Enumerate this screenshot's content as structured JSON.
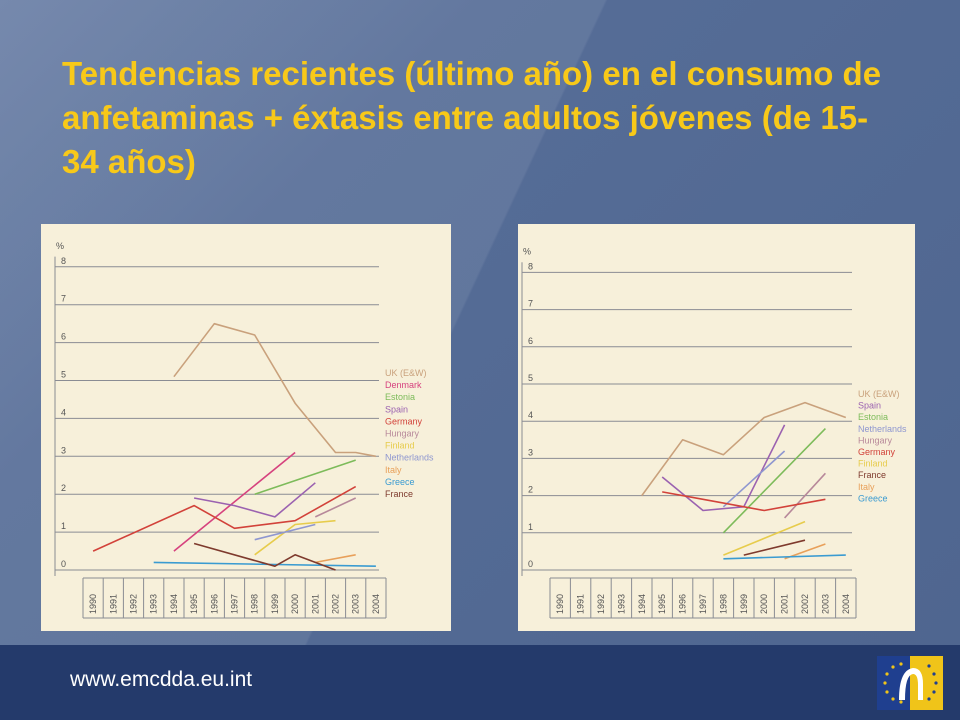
{
  "title": "Tendencias recientes (último año) en el consumo de anfetaminas + éxtasis entre adultos jóvenes (de 15-34 años)",
  "footer": {
    "url": "www.emcdda.eu.int"
  },
  "chart_data": [
    {
      "type": "line",
      "ylabel": "%",
      "ylim": [
        0,
        8
      ],
      "yticks": [
        "0",
        "1",
        "2",
        "3",
        "4",
        "5",
        "6",
        "7",
        "8"
      ],
      "x": [
        "1990",
        "1991",
        "1992",
        "1993",
        "1994",
        "1995",
        "1996",
        "1997",
        "1998",
        "1999",
        "2000",
        "2001",
        "2002",
        "2003",
        "2004"
      ],
      "legend_position": "right",
      "grid": true,
      "series": [
        {
          "name": "UK (E&W)",
          "color": "#c9a17c",
          "points": [
            [
              "1994",
              5.1
            ],
            [
              "1996",
              6.5
            ],
            [
              "1998",
              6.2
            ],
            [
              "2000",
              4.4
            ],
            [
              "2002",
              3.1
            ],
            [
              "2003",
              3.1
            ],
            [
              "2004",
              3.0
            ]
          ]
        },
        {
          "name": "Denmark",
          "color": "#d6427e",
          "points": [
            [
              "1994",
              0.5
            ],
            [
              "2000",
              3.1
            ]
          ]
        },
        {
          "name": "Estonia",
          "color": "#7dbb5a",
          "points": [
            [
              "1998",
              2.0
            ],
            [
              "2003",
              2.9
            ]
          ]
        },
        {
          "name": "Spain",
          "color": "#9b62b0",
          "points": [
            [
              "1995",
              1.9
            ],
            [
              "1997",
              1.7
            ],
            [
              "1999",
              1.4
            ],
            [
              "2001",
              2.3
            ]
          ]
        },
        {
          "name": "Germany",
          "color": "#d2423a",
          "points": [
            [
              "1990",
              0.5
            ],
            [
              "1995",
              1.7
            ],
            [
              "1997",
              1.1
            ],
            [
              "2000",
              1.3
            ],
            [
              "2003",
              2.2
            ]
          ]
        },
        {
          "name": "Hungary",
          "color": "#b7889a",
          "points": [
            [
              "2001",
              1.4
            ],
            [
              "2003",
              1.9
            ]
          ]
        },
        {
          "name": "Finland",
          "color": "#e7cc4c",
          "points": [
            [
              "1998",
              0.4
            ],
            [
              "2000",
              1.2
            ],
            [
              "2002",
              1.3
            ]
          ]
        },
        {
          "name": "Netherlands",
          "color": "#8f97d0",
          "points": [
            [
              "1998",
              0.8
            ],
            [
              "2001",
              1.2
            ]
          ]
        },
        {
          "name": "Italy",
          "color": "#e8a05a",
          "points": [
            [
              "2001",
              0.2
            ],
            [
              "2003",
              0.4
            ]
          ]
        },
        {
          "name": "Greece",
          "color": "#3a9bd1",
          "points": [
            [
              "1993",
              0.2
            ],
            [
              "2004",
              0.1
            ]
          ]
        },
        {
          "name": "France",
          "color": "#7e3a2d",
          "points": [
            [
              "1995",
              0.7
            ],
            [
              "1999",
              0.1
            ],
            [
              "2000",
              0.4
            ],
            [
              "2002",
              0.0
            ]
          ]
        }
      ]
    },
    {
      "type": "line",
      "ylabel": "%",
      "ylim": [
        0,
        8
      ],
      "yticks": [
        "0",
        "1",
        "2",
        "3",
        "4",
        "5",
        "6",
        "7",
        "8"
      ],
      "x": [
        "1990",
        "1991",
        "1992",
        "1993",
        "1994",
        "1995",
        "1996",
        "1997",
        "1998",
        "1999",
        "2000",
        "2001",
        "2002",
        "2003",
        "2004"
      ],
      "legend_position": "right",
      "grid": true,
      "series": [
        {
          "name": "UK (E&W)",
          "color": "#c9a17c",
          "points": [
            [
              "1994",
              2.0
            ],
            [
              "1996",
              3.5
            ],
            [
              "1998",
              3.1
            ],
            [
              "2000",
              4.1
            ],
            [
              "2002",
              4.5
            ],
            [
              "2004",
              4.1
            ]
          ]
        },
        {
          "name": "Spain",
          "color": "#9b62b0",
          "points": [
            [
              "1995",
              2.5
            ],
            [
              "1997",
              1.6
            ],
            [
              "1999",
              1.7
            ],
            [
              "2001",
              3.9
            ]
          ]
        },
        {
          "name": "Estonia",
          "color": "#7dbb5a",
          "points": [
            [
              "1998",
              1.0
            ],
            [
              "2003",
              3.8
            ]
          ]
        },
        {
          "name": "Netherlands",
          "color": "#8f97d0",
          "points": [
            [
              "1998",
              1.7
            ],
            [
              "2001",
              3.2
            ]
          ]
        },
        {
          "name": "Hungary",
          "color": "#b7889a",
          "points": [
            [
              "2001",
              1.4
            ],
            [
              "2003",
              2.6
            ]
          ]
        },
        {
          "name": "Germany",
          "color": "#d2423a",
          "points": [
            [
              "1995",
              2.1
            ],
            [
              "1997",
              1.9
            ],
            [
              "2000",
              1.6
            ],
            [
              "2003",
              1.9
            ]
          ]
        },
        {
          "name": "Finland",
          "color": "#e7cc4c",
          "points": [
            [
              "1998",
              0.4
            ],
            [
              "2002",
              1.3
            ]
          ]
        },
        {
          "name": "France",
          "color": "#7e3a2d",
          "points": [
            [
              "1999",
              0.4
            ],
            [
              "2002",
              0.8
            ]
          ]
        },
        {
          "name": "Italy",
          "color": "#e8a05a",
          "points": [
            [
              "2001",
              0.3
            ],
            [
              "2003",
              0.7
            ]
          ]
        },
        {
          "name": "Greece",
          "color": "#3a9bd1",
          "points": [
            [
              "1998",
              0.3
            ],
            [
              "2004",
              0.4
            ]
          ]
        }
      ]
    }
  ]
}
